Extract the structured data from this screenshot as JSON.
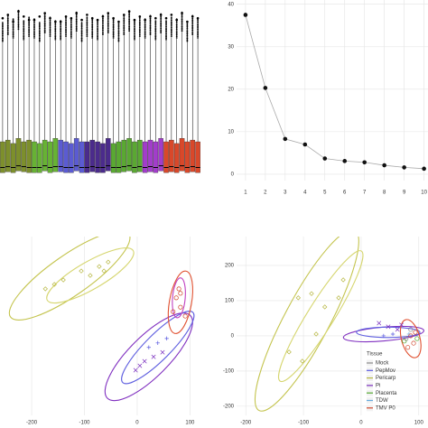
{
  "chart_data": [
    {
      "type": "box",
      "ylim": [
        0,
        100
      ],
      "groups": [
        {
          "color": "#7d8f2c",
          "q1": [
            2,
            2.5,
            2,
            3,
            2.5,
            2
          ],
          "median": [
            5,
            5.5,
            5,
            6,
            5.5,
            5
          ],
          "q3": [
            20,
            21,
            19,
            22,
            20,
            21
          ],
          "upper": [
            78,
            82,
            80,
            85,
            79,
            81
          ],
          "max": [
            92,
            94,
            90,
            96,
            93,
            91
          ]
        },
        {
          "color": "#67b234",
          "q1": [
            2,
            2,
            3,
            2,
            2.5
          ],
          "median": [
            5,
            5,
            6,
            5,
            5.5
          ],
          "q3": [
            20,
            19,
            21,
            20,
            22
          ],
          "upper": [
            80,
            78,
            83,
            81,
            79
          ],
          "max": [
            91,
            93,
            95,
            92,
            90
          ]
        },
        {
          "color": "#5b5bd2",
          "q1": [
            2.5,
            2,
            2,
            3,
            2
          ],
          "median": [
            5.5,
            5,
            5,
            6,
            5
          ],
          "q3": [
            21,
            20,
            19,
            22,
            20
          ],
          "upper": [
            79,
            81,
            80,
            84,
            78
          ],
          "max": [
            90,
            93,
            92,
            95,
            91
          ]
        },
        {
          "color": "#4b2b8c",
          "q1": [
            2,
            2.5,
            2,
            2,
            3
          ],
          "median": [
            5,
            5.5,
            5,
            5,
            6
          ],
          "q3": [
            20,
            21,
            20,
            19,
            22
          ],
          "upper": [
            81,
            80,
            79,
            82,
            83
          ],
          "max": [
            94,
            92,
            91,
            93,
            95
          ]
        },
        {
          "color": "#5aa832",
          "q1": [
            2,
            2,
            2.5,
            3,
            2,
            2.5
          ],
          "median": [
            5,
            5,
            5.5,
            6,
            5,
            5.5
          ],
          "q3": [
            19,
            20,
            21,
            22,
            20,
            21
          ],
          "upper": [
            80,
            78,
            82,
            84,
            79,
            81
          ],
          "max": [
            92,
            90,
            94,
            96,
            91,
            93
          ]
        },
        {
          "color": "#a23dca",
          "q1": [
            2,
            2.5,
            2,
            3
          ],
          "median": [
            5,
            5.5,
            5,
            6
          ],
          "q3": [
            20,
            21,
            20,
            22
          ],
          "upper": [
            80,
            82,
            79,
            83
          ],
          "max": [
            91,
            93,
            92,
            94
          ]
        },
        {
          "color": "#d9482a",
          "q1": [
            2,
            2.5,
            2,
            3,
            2,
            2.5,
            2
          ],
          "median": [
            5,
            5.5,
            5,
            6,
            5,
            5.5,
            5
          ],
          "q3": [
            20,
            21,
            19,
            22,
            20,
            21,
            20
          ],
          "upper": [
            79,
            81,
            80,
            84,
            78,
            82,
            80
          ],
          "max": [
            92,
            94,
            91,
            95,
            90,
            93,
            92
          ]
        }
      ]
    },
    {
      "type": "line",
      "x": [
        1,
        2,
        3,
        4,
        5,
        6,
        7,
        8,
        9,
        10
      ],
      "values": [
        37.5,
        20.3,
        8.3,
        7.0,
        3.7,
        3.1,
        2.8,
        2.1,
        1.6,
        1.3
      ],
      "xlim": [
        0.55,
        10.2
      ],
      "xticks": [
        1,
        2,
        3,
        4,
        5,
        6,
        7,
        8,
        9,
        10
      ],
      "ylim": [
        -1.5,
        41
      ],
      "yticks": [
        0,
        10,
        20,
        30,
        40
      ],
      "color": "#111111",
      "line_color": "#aaaaaa",
      "grid": true
    },
    {
      "type": "scatter",
      "xlim": [
        -260,
        125
      ],
      "ylim": [
        -200,
        200
      ],
      "xticks": [
        -200,
        -100,
        0,
        100
      ],
      "grid": true,
      "series": [
        {
          "color": "#b8b844",
          "marker": "diamond",
          "x": [
            -174,
            -140,
            -106,
            -72,
            -55,
            -157,
            -89,
            -63
          ],
          "y": [
            83,
            103,
            123,
            133,
            143,
            93,
            113,
            123
          ]
        },
        {
          "color": "#7a2fbf",
          "marker": "cross",
          "x": [
            -3,
            14,
            31,
            48,
            5
          ],
          "y": [
            -99,
            -79,
            -69,
            -59,
            -89
          ]
        },
        {
          "color": "#5858e0",
          "marker": "plus",
          "x": [
            22,
            39,
            56
          ],
          "y": [
            -48,
            -38,
            -28
          ]
        },
        {
          "color": "#d04a30",
          "marker": "circle",
          "x": [
            74,
            82,
            79,
            91,
            68,
            82
          ],
          "y": [
            63,
            42,
            83,
            22,
            32,
            73
          ]
        }
      ],
      "ellipses": [
        {
          "color": "#c4c44e",
          "cx": -128,
          "cy": 113,
          "rx": 137,
          "ry": 38,
          "angle": -35
        },
        {
          "color": "#d6d670",
          "cx": -89,
          "cy": 113,
          "rx": 94,
          "ry": 26,
          "angle": -30
        },
        {
          "color": "#8030c0",
          "cx": 22,
          "cy": -69,
          "rx": 111,
          "ry": 38,
          "angle": -45
        },
        {
          "color": "#6060e0",
          "cx": 39,
          "cy": -48,
          "rx": 94,
          "ry": 24,
          "angle": -45
        },
        {
          "color": "#e05030",
          "cx": 82,
          "cy": 53,
          "rx": 21,
          "ry": 60,
          "angle": 10
        },
        {
          "color": "#c040c0",
          "cx": 79,
          "cy": 63,
          "rx": 12,
          "ry": 38,
          "angle": 5
        }
      ]
    },
    {
      "type": "scatter",
      "xlim": [
        -216,
        116
      ],
      "ylim": [
        -226,
        282
      ],
      "xticks": [
        -200,
        -100,
        0,
        100
      ],
      "yticks": [
        -200,
        -100,
        0,
        100,
        200
      ],
      "grid": true,
      "legend_title": "Tissue",
      "legend": "bottom-right",
      "series": [
        {
          "name": "Mock",
          "color": "#8c8c8c",
          "marker": "circle",
          "x": [
            78,
            86
          ],
          "y": [
            -8,
            18
          ]
        },
        {
          "name": "PepMov",
          "color": "#5858e0",
          "marker": "plus",
          "x": [
            39,
            55
          ],
          "y": [
            0,
            5
          ]
        },
        {
          "name": "Pericarp",
          "color": "#b8b844",
          "marker": "diamond",
          "x": [
            -109,
            -86,
            -63,
            -39,
            -125,
            -102,
            -78,
            -31
          ],
          "y": [
            108,
            120,
            82,
            108,
            -46,
            -72,
            5,
            159
          ]
        },
        {
          "name": "Pi",
          "color": "#7a2fbf",
          "marker": "cross",
          "x": [
            31,
            47,
            63,
            70
          ],
          "y": [
            36,
            26,
            18,
            31
          ]
        },
        {
          "name": "Placenta",
          "color": "#55aa33",
          "marker": "circle",
          "x": [
            75,
            97
          ],
          "y": [
            -15,
            -8
          ]
        },
        {
          "name": "TDW",
          "color": "#66aadd",
          "marker": "plus",
          "x": [
            83
          ],
          "y": [
            5
          ]
        },
        {
          "name": "TMV P0",
          "color": "#d04a30",
          "marker": "circle",
          "x": [
            86,
            91,
            81,
            94
          ],
          "y": [
            0,
            -21,
            -33,
            10
          ]
        }
      ],
      "ellipses": [
        {
          "color": "#c4c44e",
          "cx": -94,
          "cy": 44,
          "rx": 177,
          "ry": 39,
          "angle": -62
        },
        {
          "color": "#d6d670",
          "cx": -70,
          "cy": 56,
          "rx": 133,
          "ry": 23,
          "angle": -58
        },
        {
          "color": "#8030c0",
          "cx": 39,
          "cy": 5,
          "rx": 70,
          "ry": 12,
          "angle": -5
        },
        {
          "color": "#6060e0",
          "cx": 47,
          "cy": 10,
          "rx": 55,
          "ry": 9,
          "angle": 0
        },
        {
          "color": "#e05030",
          "cx": 86,
          "cy": -8,
          "rx": 16,
          "ry": 34,
          "angle": -15
        }
      ]
    }
  ]
}
